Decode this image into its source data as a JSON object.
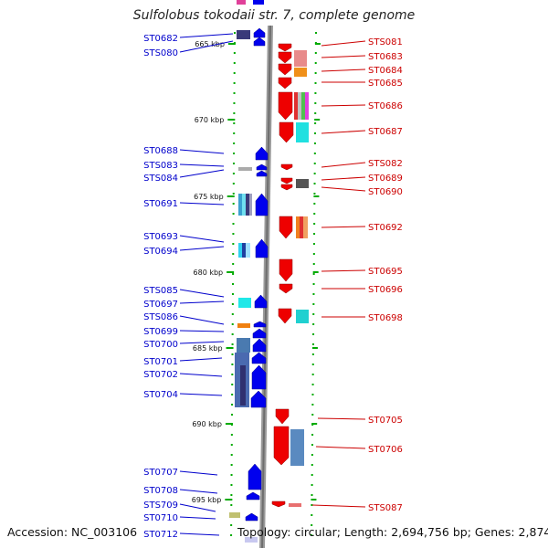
{
  "title": "Sulfolobus tokodaii str. 7, complete genome",
  "footer": {
    "accession": "Accession: NC_003106",
    "topology": "Topology: circular; Length: 2,694,756 bp; Genes: 2,874"
  },
  "colors": {
    "forward_strand": "#0000ee",
    "reverse_strand": "#ee0000",
    "left_label": "#0000cc",
    "right_label": "#cc0000",
    "tick": "#00aa00"
  },
  "kbp_labels": [
    "665 kbp",
    "670 kbp",
    "675 kbp",
    "680 kbp",
    "685 kbp",
    "690 kbp",
    "695 kbp"
  ],
  "left_genes": [
    "ST0682",
    "STS080",
    "ST0688",
    "STS083",
    "STS084",
    "ST0691",
    "ST0693",
    "ST0694",
    "STS085",
    "ST0697",
    "STS086",
    "ST0699",
    "ST0700",
    "ST0701",
    "ST0702",
    "ST0704",
    "ST0707",
    "ST0708",
    "STS709",
    "ST0710",
    "ST0712"
  ],
  "right_genes": [
    "STS081",
    "ST0683",
    "ST0684",
    "ST0685",
    "ST0686",
    "ST0687",
    "STS082",
    "ST0689",
    "ST0690",
    "ST0692",
    "ST0695",
    "ST0696",
    "ST0698",
    "ST0705",
    "ST0706",
    "STS087"
  ]
}
